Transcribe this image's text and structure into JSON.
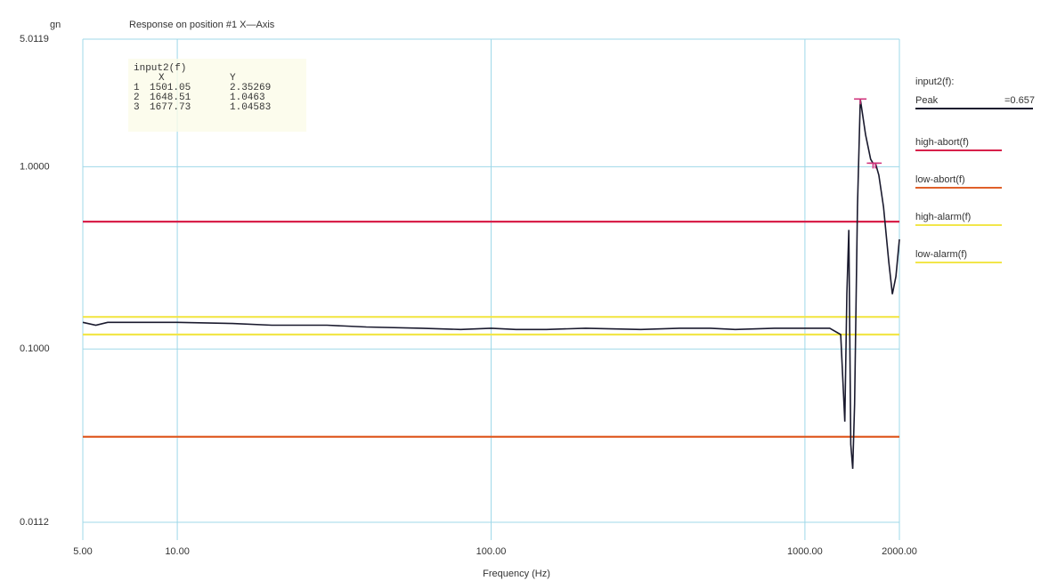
{
  "chart_data": {
    "type": "line",
    "title": "Response on position #1   X—Axis",
    "y_unit": "gn",
    "x_label": "Frequency (Hz)",
    "log_x": true,
    "log_y": true,
    "grid": true,
    "legend_position": "right",
    "legend_header": "input2(f):",
    "peak_label": "=0.657",
    "xlim": [
      5,
      2000
    ],
    "ylim": [
      0.0112,
      5.0119
    ],
    "xticks": [
      {
        "value": 5,
        "label": "5.00"
      },
      {
        "value": 10,
        "label": "10.00"
      },
      {
        "value": 100,
        "label": "100.00"
      },
      {
        "value": 1000,
        "label": "1000.00"
      },
      {
        "value": 2000,
        "label": "2000.00"
      }
    ],
    "yticks": [
      {
        "value": 5.0119,
        "label": "5.0119"
      },
      {
        "value": 1,
        "label": "1.0000"
      },
      {
        "value": 0.1,
        "label": "0.1000"
      },
      {
        "value": 0.0112,
        "label": "0.0112"
      }
    ],
    "series": [
      {
        "name": "Peak",
        "color": "#1a1a2e",
        "x": [
          5,
          5.5,
          6,
          7,
          8,
          10,
          15,
          20,
          30,
          40,
          60,
          80,
          100,
          120,
          150,
          200,
          300,
          400,
          500,
          600,
          800,
          1000,
          1200,
          1300,
          1340,
          1360,
          1380,
          1400,
          1420,
          1440,
          1470,
          1501.05,
          1560,
          1620,
          1648.51,
          1677.73,
          1720,
          1780,
          1850,
          1900,
          1950,
          2000
        ],
        "values": [
          0.14,
          0.135,
          0.14,
          0.14,
          0.14,
          0.14,
          0.138,
          0.135,
          0.135,
          0.132,
          0.13,
          0.128,
          0.13,
          0.128,
          0.128,
          0.13,
          0.128,
          0.13,
          0.13,
          0.128,
          0.13,
          0.13,
          0.13,
          0.12,
          0.04,
          0.2,
          0.45,
          0.03,
          0.022,
          0.05,
          0.6,
          2.35269,
          1.5,
          1.1,
          1.0463,
          1.04583,
          0.9,
          0.6,
          0.3,
          0.2,
          0.25,
          0.4
        ]
      },
      {
        "name": "high-abort(f)",
        "color": "#d8204a",
        "x": [
          5,
          2000
        ],
        "values": [
          0.5,
          0.5
        ]
      },
      {
        "name": "low-abort(f)",
        "color": "#e0602a",
        "x": [
          5,
          2000
        ],
        "values": [
          0.033,
          0.033
        ]
      },
      {
        "name": "high-alarm(f)",
        "color": "#f2e64a",
        "x": [
          5,
          2000
        ],
        "values": [
          0.15,
          0.15
        ]
      },
      {
        "name": "low-alarm(f)",
        "color": "#f2e64a",
        "x": [
          5,
          2000
        ],
        "values": [
          0.12,
          0.12
        ]
      }
    ],
    "cursors": {
      "title": "input2(f)",
      "x_header": "X",
      "y_header": "Y",
      "color": "#d0307a",
      "rows": [
        {
          "id": 1,
          "x": 1501.05,
          "y": 2.35269
        },
        {
          "id": 2,
          "x": 1648.51,
          "y": 1.0463
        },
        {
          "id": 3,
          "x": 1677.73,
          "y": 1.04583
        }
      ]
    }
  }
}
